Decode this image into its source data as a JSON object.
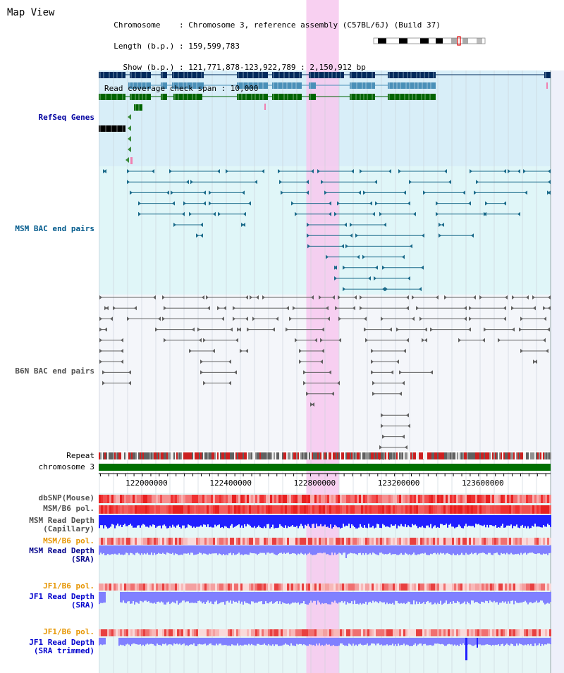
{
  "view": {
    "title": "Map View",
    "info": [
      "  Chromosome    : Chromosome 3, reference assembly (C57BL/6J) (Build 37)",
      "  Length (b.p.) : 159,599,783",
      "    Show (b.p.) : 121,771,878-123,922,789 : 2,150,912 bp",
      "Read coverage check span : 10,000"
    ]
  },
  "axis": {
    "start": 121771878,
    "end": 123922789,
    "ticks": [
      "122000000",
      "122400000",
      "122800000",
      "123200000",
      "123600000"
    ],
    "tick_values": [
      122000000,
      122400000,
      122800000,
      123200000,
      123600000
    ]
  },
  "highlight": {
    "start": 122760000,
    "end": 122915000,
    "color": "#f7c8ee"
  },
  "tracks": {
    "refseq": {
      "label": "RefSeq Genes",
      "color": "#0000a0"
    },
    "msm_bac": {
      "label": "MSM BAC end pairs",
      "color": "#005a8c"
    },
    "b6n_bac": {
      "label": "B6N BAC end pairs",
      "color": "#505050"
    },
    "repeat": {
      "label": "Repeat",
      "color": "#000000"
    },
    "chromosome": {
      "label": "chromosome 3",
      "color": "#000000"
    },
    "dbsnp": {
      "label": "dbSNP(Mouse)",
      "color": "#505050"
    },
    "msm_b6_pol": {
      "label": "MSM/B6 pol.",
      "color": "#505050"
    },
    "msm_depth_cap": {
      "label_1": "MSM Read Depth",
      "label_2": "(Capillary)",
      "color": "#505050"
    },
    "msm_b6_pol_2": {
      "label": "MSM/B6 pol.",
      "color": "#e69500"
    },
    "msm_depth_sra": {
      "label_1": "MSM Read Depth",
      "label_2": "(SRA)",
      "color": "#00008b"
    },
    "jf1_b6_pol": {
      "label": "JF1/B6 pol.",
      "color": "#e69500"
    },
    "jf1_depth_sra": {
      "label_1": "JF1 Read Depth",
      "label_2": "(SRA)",
      "color": "#0000cd"
    },
    "jf1_b6_pol_2": {
      "label": "JF1/B6 pol.",
      "color": "#e69500"
    },
    "jf1_depth_trim": {
      "label_1": "JF1 Read Depth",
      "label_2": "(SRA trimmed)",
      "color": "#0000cd"
    }
  },
  "colors": {
    "refseq_bg": "#d8eef8",
    "msm_bg": "#e0f6f8",
    "b6n_bg": "#f4f6fa",
    "lower_bg": "#e6f7f7",
    "chromosome_bar": "#007000",
    "gene_dark": "#002a5c",
    "gene_mid": "#4a90b8",
    "gene_green": "#006400",
    "msm_line": "#1a6a8a",
    "b6n_line": "#606060",
    "snp_red": "#f03030",
    "depth_blue": "#2020ff",
    "depth_light": "#8080ff"
  }
}
